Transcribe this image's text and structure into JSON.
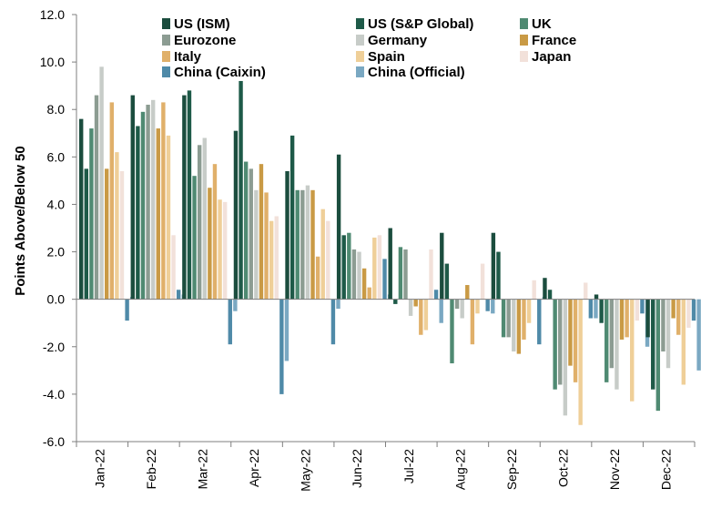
{
  "chart_data": {
    "type": "bar",
    "ylabel": "Points Above/Below 50",
    "ylim": [
      -6,
      12
    ],
    "yticks": [
      "12.0",
      "10.0",
      "8.0",
      "6.0",
      "4.0",
      "2.0",
      "0.0",
      "-2.0",
      "-4.0",
      "-6.0"
    ],
    "ytick_values": [
      12,
      10,
      8,
      6,
      4,
      2,
      0,
      -2,
      -4,
      -6
    ],
    "categories": [
      "Jan-22",
      "Feb-22",
      "Mar-22",
      "Apr-22",
      "May-22",
      "Jun-22",
      "Jul-22",
      "Aug-22",
      "Sep-22",
      "Oct-22",
      "Nov-22",
      "Dec-22"
    ],
    "grid": false,
    "legend_position": "top",
    "series": [
      {
        "name": "US (ISM)",
        "color": "#1b4d3e",
        "values": [
          7.6,
          8.6,
          8.6,
          7.1,
          5.4,
          6.1,
          3.0,
          2.8,
          2.8,
          0.9,
          0.2,
          -1.6
        ]
      },
      {
        "name": "US (S&P Global)",
        "color": "#1e5a48",
        "values": [
          5.5,
          7.3,
          8.8,
          9.2,
          6.9,
          2.7,
          -0.2,
          1.5,
          2.0,
          0.4,
          -1.0,
          -3.8
        ]
      },
      {
        "name": "UK",
        "color": "#4f8a72",
        "values": [
          7.2,
          7.9,
          5.2,
          5.8,
          4.6,
          2.8,
          2.2,
          -2.7,
          -1.6,
          -3.8,
          -3.5,
          -4.7
        ]
      },
      {
        "name": "Eurozone",
        "color": "#8c9c92",
        "values": [
          8.6,
          8.2,
          6.5,
          5.5,
          4.6,
          2.1,
          2.1,
          -0.4,
          -1.6,
          -3.6,
          -2.9,
          -2.2
        ]
      },
      {
        "name": "Germany",
        "color": "#c7ccc8",
        "values": [
          9.8,
          8.4,
          6.8,
          4.6,
          4.8,
          2.0,
          -0.7,
          -0.8,
          -2.2,
          -4.9,
          -3.8,
          -2.9
        ]
      },
      {
        "name": "France",
        "color": "#c99a45",
        "values": [
          5.5,
          7.2,
          4.7,
          5.7,
          4.6,
          1.3,
          -0.3,
          0.6,
          -2.3,
          -2.8,
          -1.7,
          -0.8
        ]
      },
      {
        "name": "Italy",
        "color": "#e0b06a",
        "values": [
          8.3,
          8.3,
          5.7,
          4.5,
          1.8,
          0.5,
          -1.5,
          -1.9,
          -1.7,
          -3.5,
          -1.6,
          -1.5
        ]
      },
      {
        "name": "Spain",
        "color": "#efcf98",
        "values": [
          6.2,
          6.9,
          4.2,
          3.3,
          3.8,
          2.6,
          -1.3,
          -0.6,
          -1.0,
          -5.3,
          -4.3,
          -3.6
        ]
      },
      {
        "name": "Japan",
        "color": "#f2e1da",
        "values": [
          5.4,
          2.7,
          4.1,
          3.5,
          3.3,
          2.7,
          2.1,
          1.5,
          0.8,
          0.7,
          -0.9,
          -1.2
        ]
      },
      {
        "name": "China (Caixin)",
        "color": "#4f8aa8",
        "values": [
          -0.9,
          0.4,
          -1.9,
          -4.0,
          -1.9,
          1.7,
          0.4,
          -0.5,
          -1.9,
          -0.8,
          -0.6,
          -0.9
        ]
      },
      {
        "name": "China (Official)",
        "color": "#7aa8c2",
        "values": [
          0.1,
          0.2,
          -0.5,
          -2.6,
          -0.4,
          0.2,
          -1.0,
          -0.6,
          0.1,
          -0.8,
          -2.0,
          -3.0
        ]
      }
    ]
  }
}
